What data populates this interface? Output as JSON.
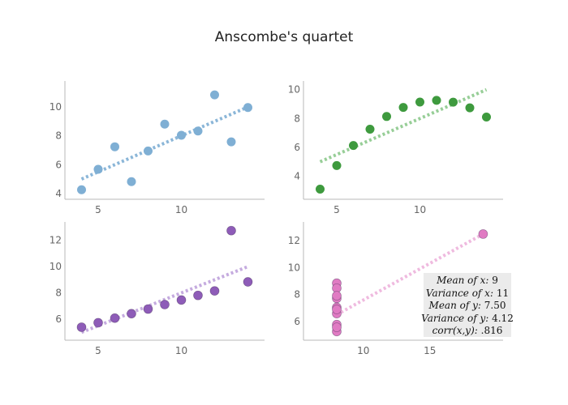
{
  "title": "Anscombe's quartet",
  "chart_data": [
    {
      "type": "scatter",
      "x": [
        10,
        8,
        13,
        9,
        11,
        14,
        6,
        4,
        12,
        7,
        5
      ],
      "y": [
        8.04,
        6.95,
        7.58,
        8.81,
        8.33,
        9.96,
        7.24,
        4.26,
        10.84,
        4.82,
        5.68
      ],
      "fit": {
        "x": [
          4,
          14
        ],
        "y": [
          5.0,
          10.0
        ]
      },
      "marker_color": "#7fafd4",
      "line_color": "#7fafd4",
      "xlim": [
        3,
        15
      ],
      "ylim": [
        3.6,
        11.8
      ],
      "xticks": [
        5,
        10
      ],
      "yticks": [
        4,
        6,
        8,
        10
      ],
      "grid": false
    },
    {
      "type": "scatter",
      "x": [
        10,
        8,
        13,
        9,
        11,
        14,
        6,
        4,
        12,
        7,
        5
      ],
      "y": [
        9.14,
        8.14,
        8.74,
        8.77,
        9.26,
        8.1,
        6.13,
        3.1,
        9.13,
        7.26,
        4.74
      ],
      "fit": {
        "x": [
          4,
          14
        ],
        "y": [
          5.0,
          10.0
        ]
      },
      "marker_color": "#3e9a3e",
      "line_color": "#8cc98c",
      "xlim": [
        3,
        15
      ],
      "ylim": [
        2.4,
        10.6
      ],
      "xticks": [
        5,
        10
      ],
      "yticks": [
        4,
        6,
        8,
        10
      ],
      "grid": false
    },
    {
      "type": "scatter",
      "x": [
        10,
        8,
        13,
        9,
        11,
        14,
        6,
        4,
        12,
        7,
        5
      ],
      "y": [
        7.46,
        6.77,
        12.74,
        7.11,
        7.81,
        8.84,
        6.08,
        5.39,
        8.15,
        6.42,
        5.73
      ],
      "fit": {
        "x": [
          4,
          14
        ],
        "y": [
          5.0,
          10.0
        ]
      },
      "marker_color": "#8e5cb8",
      "line_color": "#bfa3dc",
      "xlim": [
        3,
        15
      ],
      "ylim": [
        4.4,
        13.4
      ],
      "xticks": [
        5,
        10
      ],
      "yticks": [
        6,
        8,
        10,
        12
      ],
      "grid": false
    },
    {
      "type": "scatter",
      "x": [
        8,
        8,
        8,
        8,
        8,
        8,
        8,
        19,
        8,
        8,
        8
      ],
      "y": [
        6.58,
        5.76,
        7.71,
        8.84,
        8.47,
        7.04,
        5.25,
        12.5,
        5.56,
        7.91,
        6.89
      ],
      "fit": {
        "x": [
          8,
          19
        ],
        "y": [
          6.5,
          12.5
        ]
      },
      "marker_color": "#e07bc3",
      "line_color": "#eeb3dc",
      "xlim": [
        5.5,
        20.5
      ],
      "ylim": [
        4.6,
        13.4
      ],
      "xticks": [
        10,
        15
      ],
      "yticks": [
        6,
        8,
        10,
        12
      ],
      "grid": false
    }
  ],
  "stats": {
    "mean_x_label": "Mean of x:",
    "mean_x_value": "9",
    "var_x_label": "Variance of x:",
    "var_x_value": "11",
    "mean_y_label": "Mean of y:",
    "mean_y_value": "7.50",
    "var_y_label": "Variance of y:",
    "var_y_value": "4.12",
    "corr_label": "corr(x,y):",
    "corr_value": ".816"
  }
}
